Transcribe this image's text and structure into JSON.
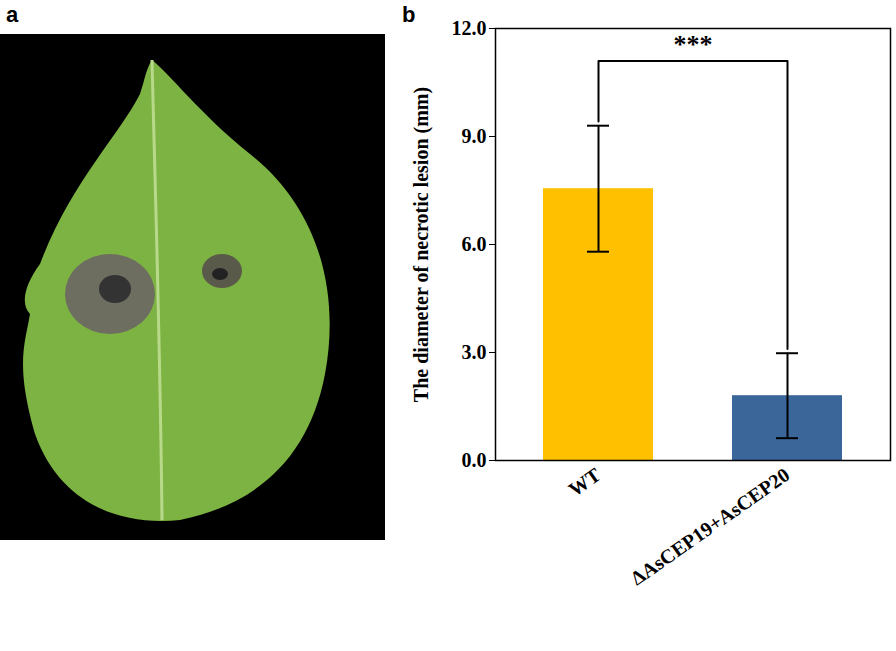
{
  "panel_labels": [
    "a",
    "b"
  ],
  "chart_data": {
    "type": "bar",
    "categories": [
      "WT",
      "ΔAsCEP19+AsCEP20"
    ],
    "values": [
      7.55,
      1.8
    ],
    "errors": [
      1.75,
      1.18
    ],
    "colors": [
      "#FFC000",
      "#3A6699"
    ],
    "y_label": "The diameter of necrotic lesion (mm)",
    "ylim": [
      0,
      12
    ],
    "yticks": [
      {
        "value": 0,
        "label": "0.0"
      },
      {
        "value": 3,
        "label": "3.0"
      },
      {
        "value": 6,
        "label": "6.0"
      },
      {
        "value": 9,
        "label": "9.0"
      },
      {
        "value": 12,
        "label": "12.0"
      }
    ],
    "annotation": "***"
  }
}
